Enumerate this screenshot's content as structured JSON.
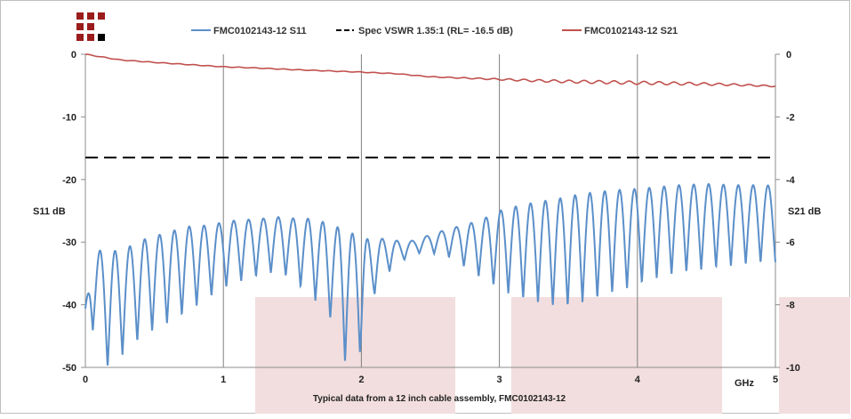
{
  "colors": {
    "s11": "#5b8fc9",
    "s21": "#c0504d",
    "spec": "#000000",
    "logo": "#9b1c1c",
    "shade": "#f2dede",
    "grid": "#808080"
  },
  "chart_data": {
    "type": "line",
    "title": "",
    "caption": "Typical data from a 12 inch cable assembly, FMC0102143-12",
    "xlabel": "GHz",
    "ylabel_left": "S11 dB",
    "ylabel_right": "S21 dB",
    "xlim": [
      0,
      5
    ],
    "ylim_left": [
      -50,
      0
    ],
    "ylim_right": [
      -10,
      0
    ],
    "x_ticks": [
      "0",
      "1",
      "2",
      "3",
      "4",
      "5"
    ],
    "y_left_ticks": [
      "0",
      "-10",
      "-20",
      "-30",
      "-40",
      "-50"
    ],
    "y_right_ticks": [
      "0",
      "-2",
      "-4",
      "-6",
      "-8",
      "-10"
    ],
    "grid": "vertical",
    "legend_position": "top",
    "series": [
      {
        "name": "FMC0102143-12 S11",
        "axis": "left",
        "style": "solid",
        "x": [
          0,
          0.06,
          0.12,
          0.18,
          0.3,
          0.42,
          0.6,
          0.75,
          0.9,
          1.0,
          1.1,
          1.25,
          1.4,
          1.5,
          1.6,
          1.7,
          1.8,
          1.88,
          1.96,
          2.0,
          2.1,
          2.2,
          2.3,
          2.4,
          2.5,
          2.6,
          2.7,
          2.8,
          2.9,
          3.0,
          3.1,
          3.2,
          3.3,
          3.4,
          3.5,
          3.6,
          3.7,
          3.8,
          3.9,
          4.0,
          4.1,
          4.2,
          4.3,
          4.4,
          4.5,
          4.6,
          4.7,
          4.8,
          4.9,
          5.0
        ],
        "peak": [
          -40.6,
          -30.4,
          -31.6,
          -31.6,
          -30.9,
          -29.6,
          -28.4,
          -27.5,
          -27.3,
          -26.8,
          -26.5,
          -26.3,
          -26.0,
          -26.2,
          -26.2,
          -26.6,
          -27.4,
          -28.0,
          -28.9,
          -29.4,
          -29.6,
          -29.3,
          -30.1,
          -29.6,
          -28.8,
          -28.1,
          -27.5,
          -26.9,
          -26.1,
          -25.0,
          -24.4,
          -23.9,
          -23.5,
          -23.2,
          -22.7,
          -22.3,
          -22.0,
          -21.8,
          -21.6,
          -21.5,
          -21.3,
          -21.1,
          -20.9,
          -20.8,
          -20.7,
          -20.8,
          -20.9,
          -20.9,
          -20.9,
          -21.0
        ],
        "trough": [
          -42.0,
          -44.4,
          -50.0,
          -50.0,
          -47.3,
          -45.0,
          -42.9,
          -41.0,
          -38.8,
          -37.4,
          -36.4,
          -35.4,
          -34.7,
          -36.0,
          -38.0,
          -40.0,
          -43.0,
          -49.2,
          -45.0,
          -48.6,
          -38.0,
          -34.8,
          -33.0,
          -31.8,
          -31.8,
          -32.0,
          -33.2,
          -34.8,
          -36.2,
          -37.4,
          -38.6,
          -39.2,
          -39.8,
          -40.2,
          -40.2,
          -39.6,
          -39.0,
          -38.2,
          -37.6,
          -36.8,
          -36.0,
          -35.4,
          -35.0,
          -34.6,
          -34.3,
          -34.0,
          -33.8,
          -33.5,
          -33.3,
          -33.2
        ]
      },
      {
        "name": "Spec VSWR 1.35:1 (RL= -16.5 dB)",
        "axis": "left",
        "style": "dashed",
        "x": [
          0,
          5
        ],
        "y": [
          -16.5,
          -16.5
        ]
      },
      {
        "name": "FMC0102143-12 S21",
        "axis": "right",
        "style": "solid",
        "x": [
          0,
          0.25,
          0.5,
          0.75,
          1.0,
          1.25,
          1.5,
          1.75,
          2.0,
          2.25,
          2.5,
          2.75,
          3.0,
          3.25,
          3.5,
          3.75,
          4.0,
          4.25,
          4.5,
          4.75,
          5.0
        ],
        "y": [
          0,
          -0.18,
          -0.26,
          -0.33,
          -0.4,
          -0.44,
          -0.49,
          -0.53,
          -0.57,
          -0.62,
          -0.72,
          -0.76,
          -0.8,
          -0.84,
          -0.87,
          -0.89,
          -0.91,
          -0.93,
          -0.95,
          -0.98,
          -1.02
        ]
      }
    ]
  }
}
